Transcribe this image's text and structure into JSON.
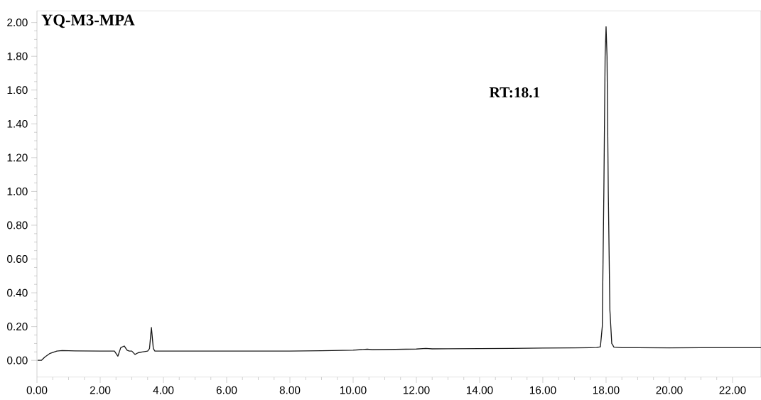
{
  "chart_data": {
    "type": "line",
    "title": "YQ-M3-MPA",
    "annotations": [
      "RT:18.1"
    ],
    "series": [
      {
        "color": "#1a1a1a",
        "x": [
          0.02,
          0.14,
          0.25,
          0.4,
          0.63,
          0.8,
          1.2,
          2.0,
          2.45,
          2.56,
          2.65,
          2.76,
          2.85,
          2.92,
          3.0,
          3.1,
          3.2,
          3.33,
          3.5,
          3.56,
          3.62,
          3.68,
          3.73,
          4.0,
          5.0,
          6.0,
          7.0,
          8.0,
          9.0,
          10.0,
          10.45,
          10.6,
          11.0,
          12.0,
          12.3,
          12.5,
          13.0,
          14.0,
          15.0,
          16.0,
          17.0,
          17.5,
          17.7,
          17.82,
          17.88,
          17.93,
          17.97,
          18.0,
          18.03,
          18.07,
          18.12,
          18.18,
          18.25,
          18.5,
          19.0,
          20.0,
          21.0,
          22.0,
          22.9
        ],
        "values": [
          0.0,
          0.0,
          0.02,
          0.04,
          0.055,
          0.058,
          0.056,
          0.055,
          0.055,
          0.025,
          0.075,
          0.085,
          0.06,
          0.055,
          0.055,
          0.035,
          0.045,
          0.05,
          0.055,
          0.07,
          0.195,
          0.07,
          0.055,
          0.055,
          0.055,
          0.055,
          0.055,
          0.055,
          0.057,
          0.06,
          0.066,
          0.063,
          0.064,
          0.067,
          0.071,
          0.068,
          0.069,
          0.07,
          0.071,
          0.073,
          0.074,
          0.075,
          0.076,
          0.08,
          0.2,
          1.0,
          1.8,
          1.975,
          1.8,
          1.0,
          0.3,
          0.1,
          0.078,
          0.075,
          0.075,
          0.074,
          0.075,
          0.075,
          0.075
        ]
      }
    ],
    "xlim": [
      0,
      22.9
    ],
    "ylim": [
      -0.1,
      2.07
    ],
    "xticks": [
      {
        "value": 0,
        "label": "0.00"
      },
      {
        "value": 2,
        "label": "2.00"
      },
      {
        "value": 4,
        "label": "4.00"
      },
      {
        "value": 6,
        "label": "6.00"
      },
      {
        "value": 8,
        "label": "8.00"
      },
      {
        "value": 10,
        "label": "10.00"
      },
      {
        "value": 12,
        "label": "12.00"
      },
      {
        "value": 14,
        "label": "14.00"
      },
      {
        "value": 16,
        "label": "16.00"
      },
      {
        "value": 18,
        "label": "18.00"
      },
      {
        "value": 20,
        "label": "20.00"
      },
      {
        "value": 22,
        "label": "22.00"
      }
    ],
    "yticks": [
      {
        "value": 0,
        "label": "0.00"
      },
      {
        "value": 0.2,
        "label": "0.20"
      },
      {
        "value": 0.4,
        "label": "0.40"
      },
      {
        "value": 0.6,
        "label": "0.60"
      },
      {
        "value": 0.8,
        "label": "0.80"
      },
      {
        "value": 1.0,
        "label": "1.00"
      },
      {
        "value": 1.2,
        "label": "1.20"
      },
      {
        "value": 1.4,
        "label": "1.40"
      },
      {
        "value": 1.6,
        "label": "1.60"
      },
      {
        "value": 1.8,
        "label": "1.80"
      },
      {
        "value": 2.0,
        "label": "2.00"
      }
    ]
  }
}
